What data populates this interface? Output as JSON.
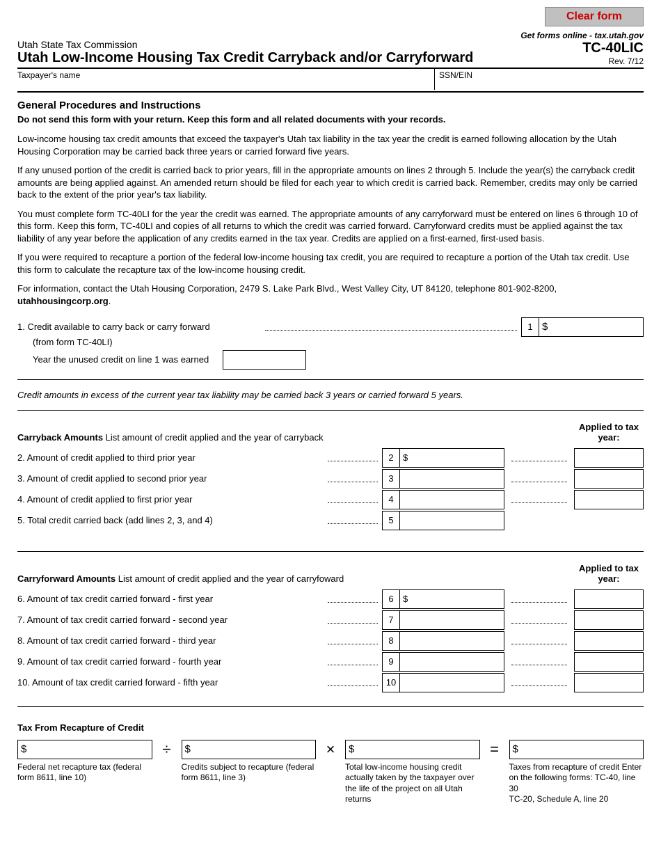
{
  "clear_btn": "Clear form",
  "agency": "Utah State Tax Commission",
  "title": "Utah Low-Income Housing Tax Credit Carryback and/or Carryforward",
  "online": "Get forms online - tax.utah.gov",
  "form_code": "TC-40LIC",
  "rev": "Rev. 7/12",
  "taxpayer_label": "Taxpayer's name",
  "ssn_label": "SSN/EIN",
  "procedures_heading": "General Procedures and Instructions",
  "keep_note": "Do not send this form with your return. Keep this form and all related documents with your records.",
  "p1": "Low-income housing tax credit amounts that exceed the taxpayer's Utah tax liability in the tax year the credit is earned following allocation by the Utah Housing Corporation may be carried back three years or carried forward five years.",
  "p2": "If any unused portion of the credit is carried back to prior years, fill in the appropriate amounts on lines 2 through 5. Include the year(s) the carryback credit amounts are being applied against. An amended return should be filed for each year to which credit is carried back. Remember, credits may only be carried back to the extent of the prior year's tax liability.",
  "p3": "You must complete form TC-40LI for the year the credit was earned. The appropriate amounts of any carryforward must be entered on lines 6 through 10 of this form. Keep this form, TC-40LI and copies of all returns to which the credit was carried forward. Carryforward credits must be applied against the tax liability of any year before the application of any credits earned in the tax year. Credits are applied on a first-earned, first-used basis.",
  "p4": "If you were required to recapture a portion of the federal low-income housing tax credit, you are required to recapture a portion of the Utah tax credit. Use this form to calculate the recapture tax of the low-income housing credit.",
  "p5a": "For information, contact the Utah Housing Corporation, 2479 S. Lake Park Blvd., West Valley City, UT 84120, telephone 801-902-8200, ",
  "p5b": "utahhousingcorp.org",
  "p5c": ".",
  "line1_label": "1. Credit available to carry back or carry forward",
  "line1_from": "(from form TC-40LI)",
  "line1_num": "1",
  "line1_sub": "Year the unused credit on line 1 was earned",
  "dollar": "$",
  "note_italic": "Credit amounts in excess of the current year tax liability may be carried back 3 years or carried forward 5 years.",
  "applied_to": "Applied to tax year:",
  "cb_title": "Carryback Amounts",
  "cb_desc": " List amount of credit applied and the year of carryback",
  "cb": [
    {
      "n": "2",
      "lbl": "2. Amount of credit applied to third prior year",
      "dollar": "$",
      "yr": true
    },
    {
      "n": "3",
      "lbl": "3. Amount of credit applied to second prior year",
      "dollar": "",
      "yr": true
    },
    {
      "n": "4",
      "lbl": "4. Amount of credit applied to first prior year",
      "dollar": "",
      "yr": true
    },
    {
      "n": "5",
      "lbl": "5. Total credit carried back (add lines 2, 3, and 4)",
      "dollar": "",
      "yr": false
    }
  ],
  "cf_title": "Carryforward Amounts",
  "cf_desc": " List amount of credit applied and the year of carryfoward",
  "cf": [
    {
      "n": "6",
      "lbl": "6. Amount of tax credit carried forward - first year",
      "dollar": "$",
      "yr": true
    },
    {
      "n": "7",
      "lbl": "7. Amount of tax credit carried forward - second year",
      "dollar": "",
      "yr": true
    },
    {
      "n": "8",
      "lbl": "8. Amount of tax credit carried forward - third year",
      "dollar": "",
      "yr": true
    },
    {
      "n": "9",
      "lbl": "9. Amount of tax credit carried forward - fourth year",
      "dollar": "",
      "yr": true
    },
    {
      "n": "10",
      "lbl": "10. Amount of tax credit carried forward - fifth year",
      "dollar": "",
      "yr": true
    }
  ],
  "recap_title": "Tax From Recapture of Credit",
  "recap": {
    "c1": {
      "d": "Federal net recapture tax (federal form 8611, line 10)"
    },
    "op1": "÷",
    "c2": {
      "d": "Credits subject to recapture (federal form 8611, line 3)"
    },
    "op2": "×",
    "c3": {
      "d": "Total low-income housing credit actually taken by the taxpayer over the life of the project on all Utah returns"
    },
    "op3": "=",
    "c4": {
      "d": "Taxes from recapture of credit Enter on the following forms: TC-40, line 30\nTC-20, Schedule A, line 20"
    }
  }
}
